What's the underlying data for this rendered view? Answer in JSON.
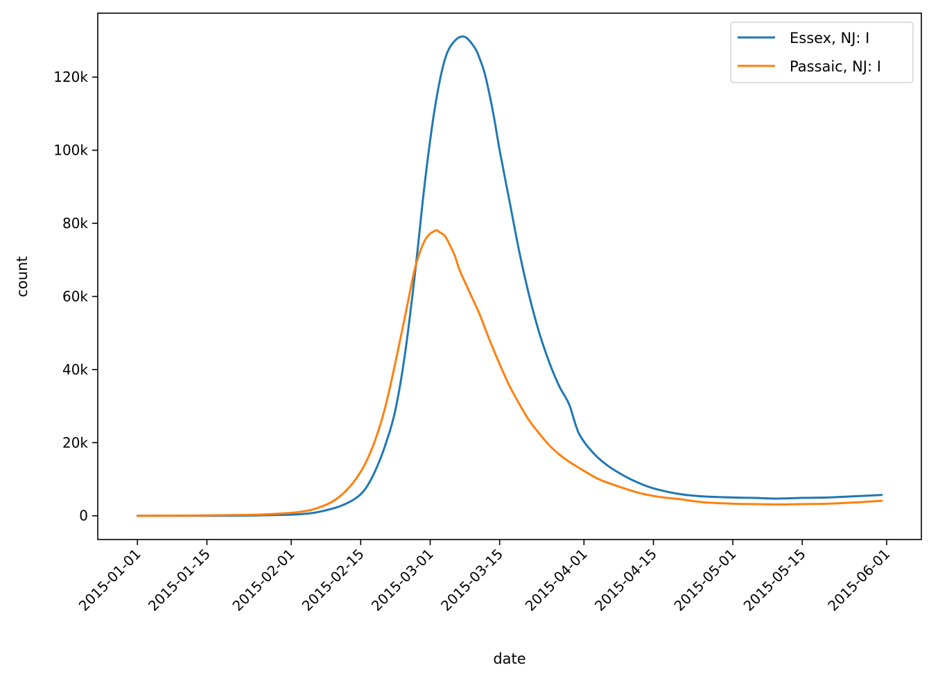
{
  "chart_data": {
    "type": "line",
    "xlabel": "date",
    "ylabel": "count",
    "x_ticks": [
      "2015-01-01",
      "2015-01-15",
      "2015-02-01",
      "2015-02-15",
      "2015-03-01",
      "2015-03-15",
      "2015-04-01",
      "2015-04-15",
      "2015-05-01",
      "2015-05-15",
      "2015-06-01"
    ],
    "y_ticks": [
      {
        "value": 0,
        "label": "0"
      },
      {
        "value": 20000,
        "label": "20k"
      },
      {
        "value": 40000,
        "label": "40k"
      },
      {
        "value": 60000,
        "label": "60k"
      },
      {
        "value": 80000,
        "label": "80k"
      },
      {
        "value": 100000,
        "label": "100k"
      },
      {
        "value": 120000,
        "label": "120k"
      }
    ],
    "xlim": [
      "2014-12-24",
      "2015-06-08"
    ],
    "ylim": [
      -6500,
      137500
    ],
    "grid": false,
    "legend_position": "top-right",
    "series": [
      {
        "name": "Essex, NJ: I",
        "color": "#1f77b4",
        "x": [
          "2015-01-01",
          "2015-01-10",
          "2015-01-20",
          "2015-01-25",
          "2015-02-01",
          "2015-02-05",
          "2015-02-08",
          "2015-02-11",
          "2015-02-14",
          "2015-02-16",
          "2015-02-18",
          "2015-02-20",
          "2015-02-22",
          "2015-02-24",
          "2015-02-26",
          "2015-02-28",
          "2015-03-02",
          "2015-03-04",
          "2015-03-06",
          "2015-03-08",
          "2015-03-10",
          "2015-03-11",
          "2015-03-12",
          "2015-03-13",
          "2015-03-14",
          "2015-03-15",
          "2015-03-17",
          "2015-03-19",
          "2015-03-21",
          "2015-03-23",
          "2015-03-25",
          "2015-03-27",
          "2015-03-29",
          "2015-03-31",
          "2015-04-03",
          "2015-04-06",
          "2015-04-09",
          "2015-04-12",
          "2015-04-15",
          "2015-04-20",
          "2015-04-25",
          "2015-05-01",
          "2015-05-05",
          "2015-05-10",
          "2015-05-15",
          "2015-05-20",
          "2015-05-25",
          "2015-05-31"
        ],
        "y": [
          0,
          0,
          0,
          100,
          300,
          700,
          1500,
          2700,
          4800,
          7500,
          12500,
          19500,
          29000,
          45000,
          67000,
          92000,
          112000,
          125000,
          130000,
          131000,
          128000,
          125000,
          121000,
          115000,
          108000,
          100000,
          86000,
          72000,
          60000,
          50000,
          42000,
          35500,
          30500,
          22500,
          17000,
          13500,
          11000,
          9000,
          7500,
          6000,
          5300,
          5000,
          4900,
          4700,
          4900,
          5000,
          5300,
          5700
        ]
      },
      {
        "name": "Passaic, NJ: I",
        "color": "#ff7f0e",
        "x": [
          "2015-01-01",
          "2015-01-15",
          "2015-01-25",
          "2015-02-01",
          "2015-02-05",
          "2015-02-08",
          "2015-02-10",
          "2015-02-12",
          "2015-02-14",
          "2015-02-16",
          "2015-02-18",
          "2015-02-20",
          "2015-02-22",
          "2015-02-24",
          "2015-02-26",
          "2015-02-28",
          "2015-03-02",
          "2015-03-03",
          "2015-03-04",
          "2015-03-05",
          "2015-03-06",
          "2015-03-07",
          "2015-03-09",
          "2015-03-11",
          "2015-03-13",
          "2015-03-15",
          "2015-03-17",
          "2015-03-19",
          "2015-03-21",
          "2015-03-23",
          "2015-03-25",
          "2015-03-27",
          "2015-03-29",
          "2015-04-01",
          "2015-04-04",
          "2015-04-08",
          "2015-04-12",
          "2015-04-16",
          "2015-04-20",
          "2015-04-25",
          "2015-05-01",
          "2015-05-05",
          "2015-05-10",
          "2015-05-15",
          "2015-05-20",
          "2015-05-25",
          "2015-05-31"
        ],
        "y": [
          0,
          100,
          300,
          800,
          1600,
          3000,
          4500,
          6800,
          10000,
          14500,
          21000,
          30000,
          42000,
          55000,
          68000,
          75500,
          78000,
          77500,
          76500,
          74000,
          71000,
          67000,
          61000,
          55000,
          48000,
          41500,
          35500,
          30500,
          26000,
          22500,
          19300,
          16800,
          14800,
          12300,
          10000,
          8000,
          6300,
          5200,
          4600,
          3700,
          3300,
          3200,
          3100,
          3200,
          3300,
          3600,
          4100
        ]
      }
    ]
  }
}
